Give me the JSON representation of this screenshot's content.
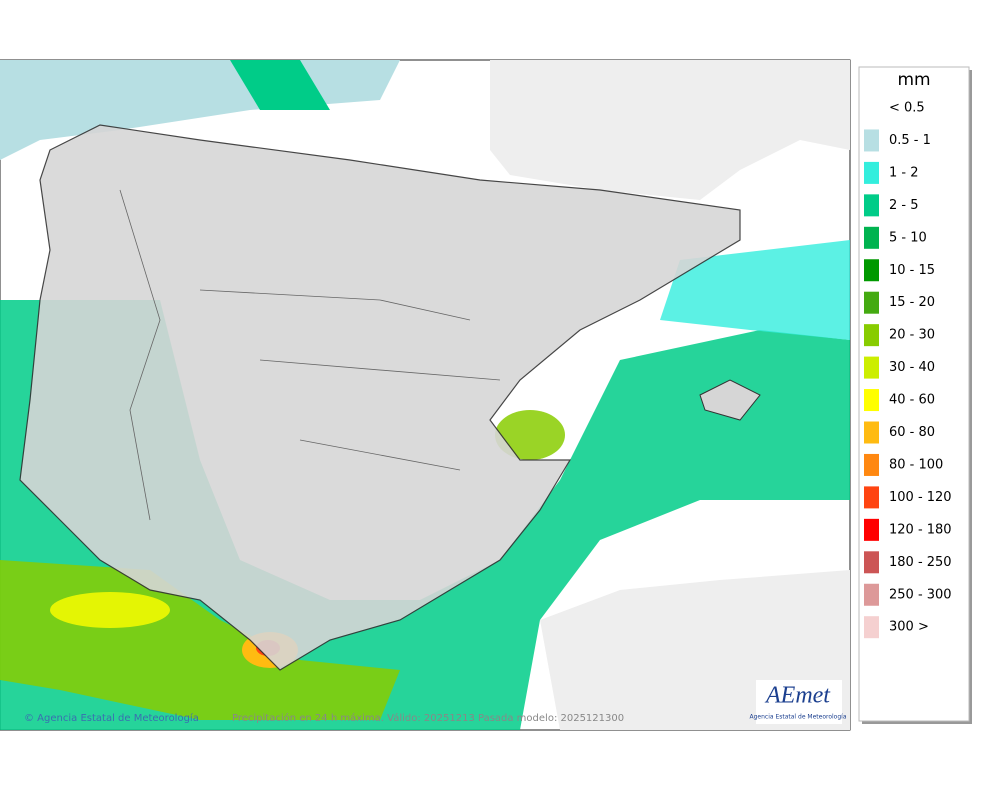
{
  "legend": {
    "title": "mm",
    "items": [
      {
        "label": "< 0.5",
        "color": "#ffffff"
      },
      {
        "label": "0.5 - 1",
        "color": "#b7dfe3"
      },
      {
        "label": "1 - 2",
        "color": "#33eedd"
      },
      {
        "label": "2 - 5",
        "color": "#00cc88"
      },
      {
        "label": "5 - 10",
        "color": "#00b350"
      },
      {
        "label": "10 - 15",
        "color": "#009900"
      },
      {
        "label": "15 - 20",
        "color": "#44aa11"
      },
      {
        "label": "20 - 30",
        "color": "#88cc00"
      },
      {
        "label": "30 - 40",
        "color": "#ccee00"
      },
      {
        "label": "40 - 60",
        "color": "#ffff00"
      },
      {
        "label": "60 - 80",
        "color": "#ffbb11"
      },
      {
        "label": "80 - 100",
        "color": "#ff8811"
      },
      {
        "label": "100 - 120",
        "color": "#ff4411"
      },
      {
        "label": "120 - 180",
        "color": "#ff0000"
      },
      {
        "label": "180 - 250",
        "color": "#cc5555"
      },
      {
        "label": "250 - 300",
        "color": "#dd9999"
      },
      {
        "label": "300 >",
        "color": "#f5d0d0"
      }
    ]
  },
  "footer": {
    "copyright": "© Agencia Estatal de Meteorología",
    "caption": "Precipitación en 24 h máxima. Válido: 20251213 Pasada modelo: 2025121300"
  },
  "logo": {
    "name": "AEmet",
    "subtitle": "Agencia Estatal de Meteorología"
  }
}
